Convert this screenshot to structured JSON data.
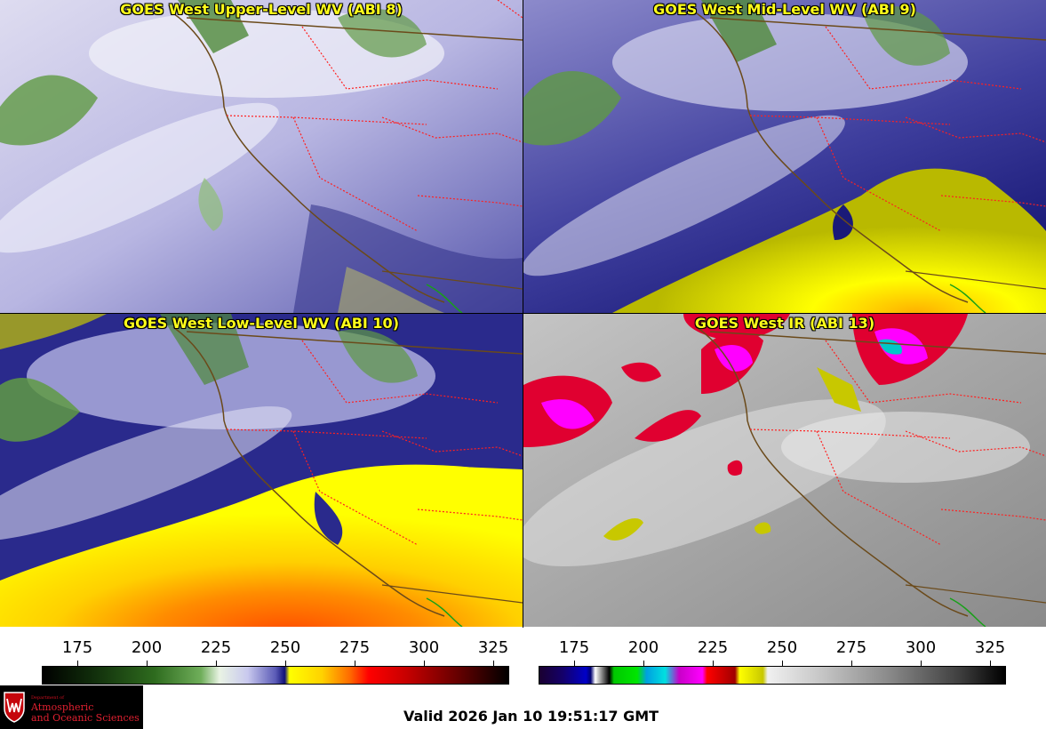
{
  "panels": [
    {
      "title": "GOES West Upper-Level WV (ABI 8)",
      "scheme": "wv-upper"
    },
    {
      "title": "GOES West Mid-Level WV (ABI 9)",
      "scheme": "wv-mid"
    },
    {
      "title": "GOES West Low-Level WV (ABI 10)",
      "scheme": "wv-low"
    },
    {
      "title": "GOES West IR (ABI 13)",
      "scheme": "ir"
    }
  ],
  "colorbar_wv": {
    "ticks": [
      "175",
      "200",
      "225",
      "250",
      "275",
      "300",
      "325"
    ]
  },
  "colorbar_ir": {
    "ticks": [
      "175",
      "200",
      "225",
      "250",
      "275",
      "300",
      "325"
    ]
  },
  "logo": {
    "dept": "Department of",
    "line1": "Atmospheric",
    "line2": "and Oceanic Sciences"
  },
  "valid_time": "Valid 2026 Jan 10 19:51:17 GMT",
  "colors": {
    "title": "#ffff1a",
    "coast": "#6b4a1a",
    "state_border": "#ff2020",
    "wv_blue": "#2a2a96",
    "wv_yellow": "#ffff00",
    "ir_magenta": "#ff00ff",
    "ir_red": "#e00030"
  }
}
